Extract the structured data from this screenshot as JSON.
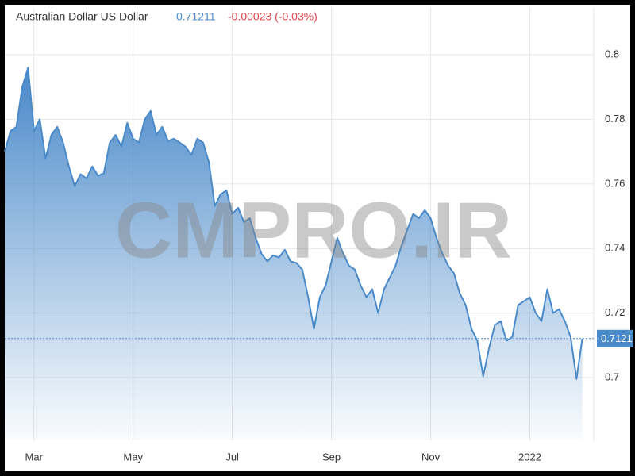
{
  "chart_data": {
    "type": "area",
    "title": "Australian Dollar US Dollar",
    "price": "0.71211",
    "change": "-0.00023 (-0.03%)",
    "price_tag": "0.7121",
    "watermark": "CMPRO.IR",
    "categories": [
      null,
      null,
      null,
      null,
      null,
      "Mar",
      null,
      null,
      null,
      null,
      null,
      null,
      null,
      null,
      null,
      null,
      null,
      null,
      null,
      null,
      null,
      null,
      "May",
      null,
      null,
      null,
      null,
      null,
      null,
      null,
      null,
      null,
      null,
      null,
      null,
      null,
      null,
      null,
      null,
      "Jul",
      null,
      null,
      null,
      null,
      null,
      null,
      null,
      null,
      null,
      null,
      null,
      null,
      null,
      null,
      null,
      null,
      "Sep",
      null,
      null,
      null,
      null,
      null,
      null,
      null,
      null,
      null,
      null,
      null,
      null,
      null,
      null,
      null,
      null,
      "Nov",
      null,
      null,
      null,
      null,
      null,
      null,
      null,
      null,
      null,
      null,
      null,
      null,
      null,
      null,
      null,
      null,
      "2022",
      null,
      null,
      null,
      null,
      null,
      null,
      null,
      null,
      null
    ],
    "values": [
      0.77,
      0.7764,
      0.7777,
      0.79,
      0.796,
      0.7764,
      0.78,
      0.7679,
      0.7752,
      0.7777,
      0.7728,
      0.7654,
      0.7593,
      0.763,
      0.7617,
      0.7654,
      0.7625,
      0.7634,
      0.7728,
      0.7752,
      0.7715,
      0.7789,
      0.774,
      0.7728,
      0.78,
      0.7826,
      0.7752,
      0.7777,
      0.7733,
      0.774,
      0.7728,
      0.7715,
      0.769,
      0.774,
      0.7728,
      0.7666,
      0.7531,
      0.7568,
      0.758,
      0.7507,
      0.7526,
      0.7482,
      0.7494,
      0.7433,
      0.7384,
      0.736,
      0.7379,
      0.7372,
      0.7396,
      0.736,
      0.7355,
      0.7335,
      0.7249,
      0.7151,
      0.7249,
      0.7286,
      0.736,
      0.7433,
      0.7384,
      0.7347,
      0.7335,
      0.7286,
      0.7249,
      0.7274,
      0.72,
      0.7274,
      0.731,
      0.7347,
      0.7409,
      0.7458,
      0.7507,
      0.7494,
      0.7519,
      0.7494,
      0.7433,
      0.7384,
      0.7347,
      0.7323,
      0.7261,
      0.7225,
      0.7151,
      0.7114,
      0.7004,
      0.709,
      0.7163,
      0.7175,
      0.7114,
      0.7126,
      0.7225,
      0.7237,
      0.7249,
      0.72,
      0.7175,
      0.7274,
      0.72,
      0.7212,
      0.7175,
      0.7126,
      0.6996,
      0.7121
    ],
    "color": "#4a8ac9",
    "ylim": [
      0.6806,
      0.8145
    ],
    "yticks": [
      0.7,
      0.72,
      0.74,
      0.76,
      0.78,
      0.8
    ],
    "grid": true
  }
}
